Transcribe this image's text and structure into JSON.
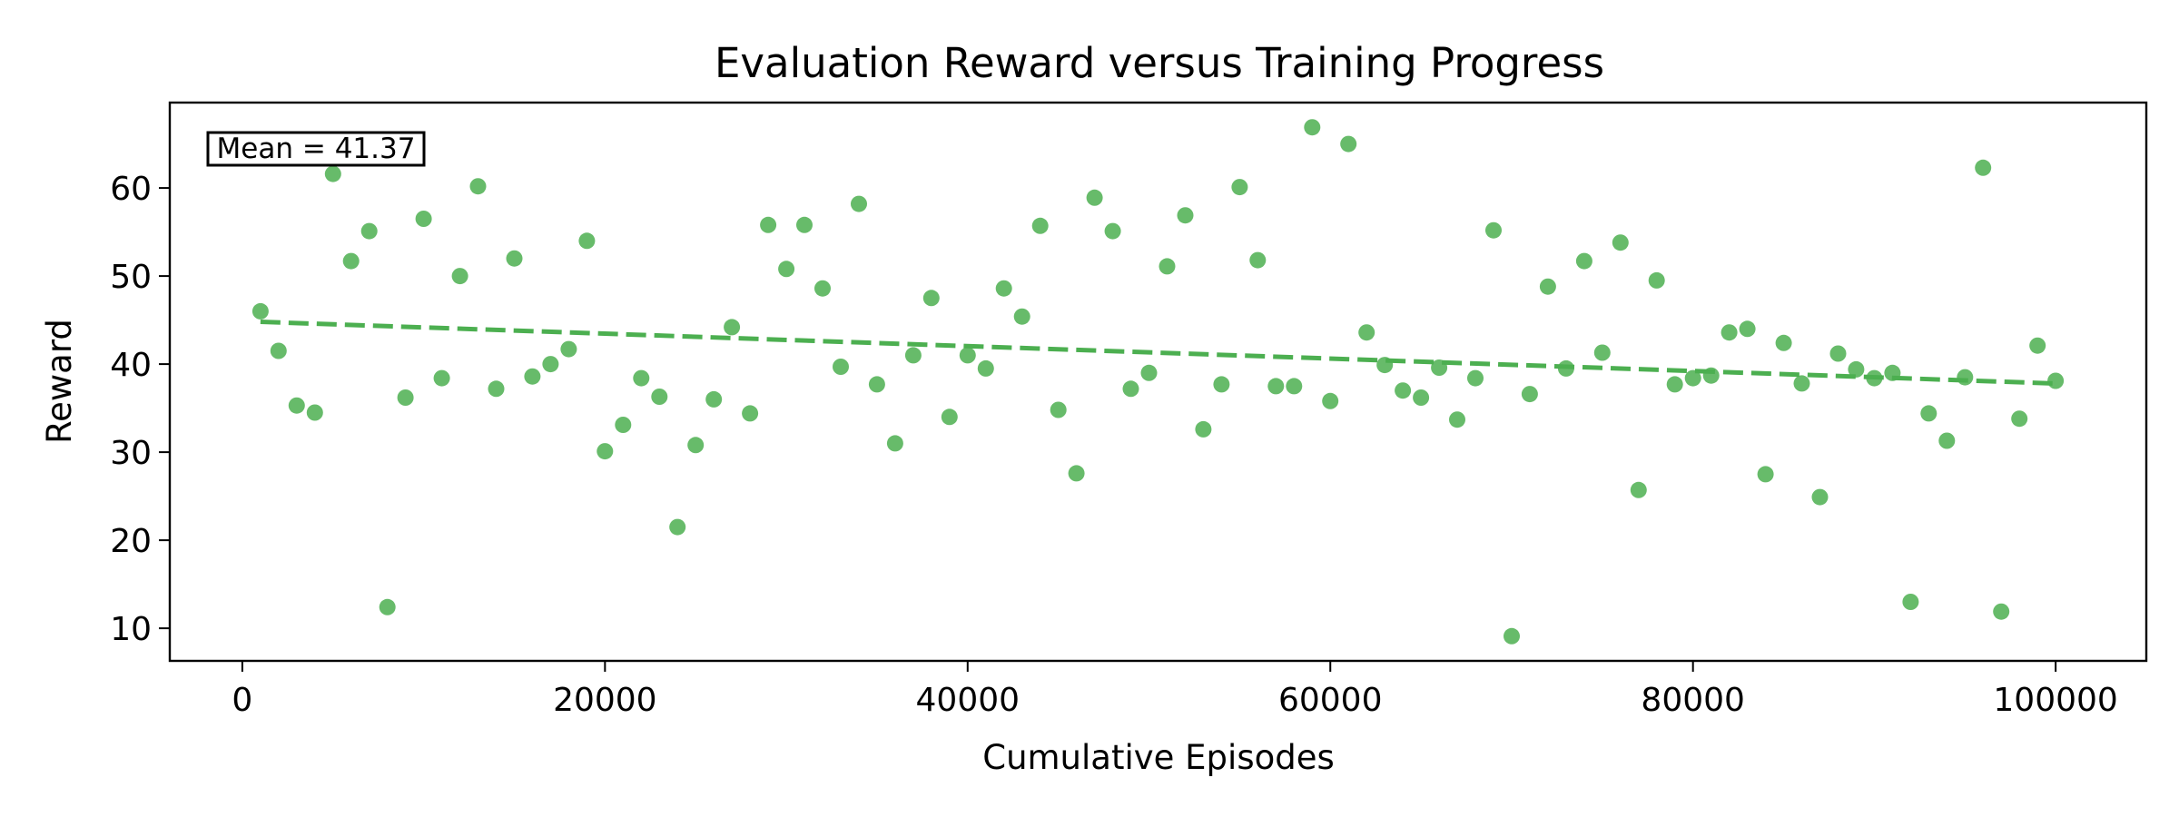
{
  "chart_data": {
    "type": "scatter",
    "title": "Evaluation Reward versus Training Progress",
    "xlabel": "Cumulative Episodes",
    "ylabel": "Reward",
    "xlim": [
      -4000,
      105000
    ],
    "ylim": [
      6.3,
      69.7
    ],
    "xticks": [
      0,
      20000,
      40000,
      60000,
      80000,
      100000
    ],
    "xtick_labels": [
      "0",
      "20000",
      "40000",
      "60000",
      "80000",
      "100000"
    ],
    "yticks": [
      10,
      20,
      30,
      40,
      50,
      60
    ],
    "ytick_labels": [
      "10",
      "20",
      "30",
      "40",
      "50",
      "60"
    ],
    "grid": false,
    "color": "#4caf50",
    "annotation": "Mean = 41.37",
    "trend_line": {
      "x": [
        1000,
        100000
      ],
      "y": [
        44.8,
        37.8
      ],
      "style": "dashed"
    },
    "points": [
      [
        1000,
        46.0
      ],
      [
        2000,
        41.5
      ],
      [
        3000,
        35.3
      ],
      [
        4000,
        34.5
      ],
      [
        5000,
        61.6
      ],
      [
        6000,
        51.7
      ],
      [
        7000,
        55.1
      ],
      [
        8000,
        12.4
      ],
      [
        9000,
        36.2
      ],
      [
        10000,
        56.5
      ],
      [
        11000,
        38.4
      ],
      [
        12000,
        50.0
      ],
      [
        13000,
        60.2
      ],
      [
        14000,
        37.2
      ],
      [
        15000,
        52.0
      ],
      [
        16000,
        38.6
      ],
      [
        17000,
        40.0
      ],
      [
        18000,
        41.7
      ],
      [
        19000,
        54.0
      ],
      [
        20000,
        30.1
      ],
      [
        21000,
        33.1
      ],
      [
        22000,
        38.4
      ],
      [
        23000,
        36.3
      ],
      [
        24000,
        21.5
      ],
      [
        25000,
        30.8
      ],
      [
        26000,
        36.0
      ],
      [
        27000,
        44.2
      ],
      [
        28000,
        34.4
      ],
      [
        29000,
        55.8
      ],
      [
        30000,
        50.8
      ],
      [
        31000,
        55.8
      ],
      [
        32000,
        48.6
      ],
      [
        33000,
        39.7
      ],
      [
        34000,
        58.2
      ],
      [
        35000,
        37.7
      ],
      [
        36000,
        31.0
      ],
      [
        37000,
        41.0
      ],
      [
        38000,
        47.5
      ],
      [
        39000,
        34.0
      ],
      [
        40000,
        41.0
      ],
      [
        41000,
        39.5
      ],
      [
        42000,
        48.6
      ],
      [
        43000,
        45.4
      ],
      [
        44000,
        55.7
      ],
      [
        45000,
        34.8
      ],
      [
        46000,
        27.6
      ],
      [
        47000,
        58.9
      ],
      [
        48000,
        55.1
      ],
      [
        49000,
        37.2
      ],
      [
        50000,
        39.0
      ],
      [
        51000,
        51.1
      ],
      [
        52000,
        56.9
      ],
      [
        53000,
        32.6
      ],
      [
        54000,
        37.7
      ],
      [
        55000,
        60.1
      ],
      [
        56000,
        51.8
      ],
      [
        57000,
        37.5
      ],
      [
        58000,
        37.5
      ],
      [
        59000,
        66.9
      ],
      [
        60000,
        35.8
      ],
      [
        61000,
        65.0
      ],
      [
        62000,
        43.6
      ],
      [
        63000,
        39.9
      ],
      [
        64000,
        37.0
      ],
      [
        65000,
        36.2
      ],
      [
        66000,
        39.6
      ],
      [
        67000,
        33.7
      ],
      [
        68000,
        38.4
      ],
      [
        69000,
        55.2
      ],
      [
        70000,
        9.1
      ],
      [
        71000,
        36.6
      ],
      [
        72000,
        48.8
      ],
      [
        73000,
        39.5
      ],
      [
        74000,
        51.7
      ],
      [
        75000,
        41.3
      ],
      [
        76000,
        53.8
      ],
      [
        77000,
        25.7
      ],
      [
        78000,
        49.5
      ],
      [
        79000,
        37.7
      ],
      [
        80000,
        38.4
      ],
      [
        81000,
        38.7
      ],
      [
        82000,
        43.6
      ],
      [
        83000,
        44.0
      ],
      [
        84000,
        27.5
      ],
      [
        85000,
        42.4
      ],
      [
        86000,
        37.8
      ],
      [
        87000,
        24.9
      ],
      [
        88000,
        41.2
      ],
      [
        89000,
        39.4
      ],
      [
        90000,
        38.4
      ],
      [
        91000,
        39.0
      ],
      [
        92000,
        13.0
      ],
      [
        93000,
        34.4
      ],
      [
        94000,
        31.3
      ],
      [
        95000,
        38.5
      ],
      [
        96000,
        62.3
      ],
      [
        97000,
        11.9
      ],
      [
        98000,
        33.8
      ],
      [
        99000,
        42.1
      ],
      [
        100000,
        38.1
      ]
    ]
  }
}
